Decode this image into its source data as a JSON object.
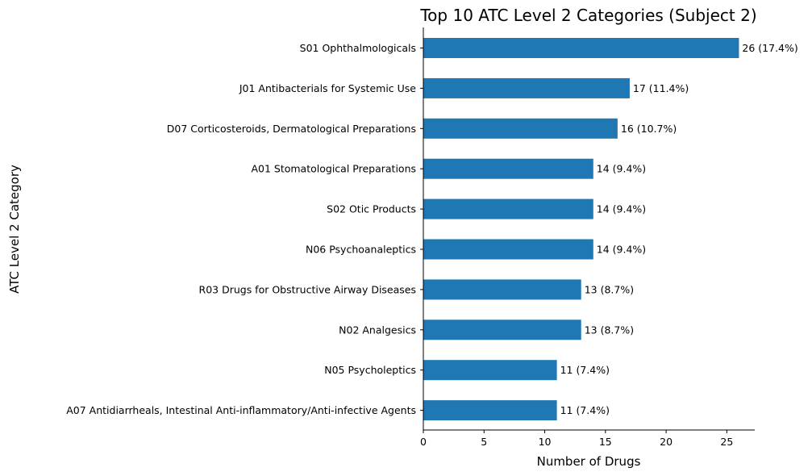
{
  "chart_data": {
    "type": "bar",
    "orientation": "horizontal",
    "title": "Top 10 ATC Level 2 Categories (Subject 2)",
    "xlabel": "Number of Drugs",
    "ylabel": "ATC Level 2 Category",
    "xlim": [
      0,
      27.3
    ],
    "xticks": [
      0,
      5,
      10,
      15,
      20,
      25
    ],
    "grid": false,
    "bar_color": "#1f77b4",
    "categories": [
      "S01 Ophthalmologicals",
      "J01 Antibacterials for Systemic Use",
      "D07 Corticosteroids, Dermatological Preparations",
      "A01 Stomatological Preparations",
      "S02 Otic Products",
      "N06 Psychoanaleptics",
      "R03 Drugs for Obstructive Airway Diseases",
      "N02 Analgesics",
      "N05 Psycholeptics",
      "A07 Antidiarrheals, Intestinal Anti-inflammatory/Anti-infective Agents"
    ],
    "values": [
      26,
      17,
      16,
      14,
      14,
      14,
      13,
      13,
      11,
      11
    ],
    "data_labels": [
      "26 (17.4%)",
      "17 (11.4%)",
      "16 (10.7%)",
      "14 (9.4%)",
      "14 (9.4%)",
      "14 (9.4%)",
      "13 (8.7%)",
      "13 (8.7%)",
      "11 (7.4%)",
      "11 (7.4%)"
    ]
  }
}
